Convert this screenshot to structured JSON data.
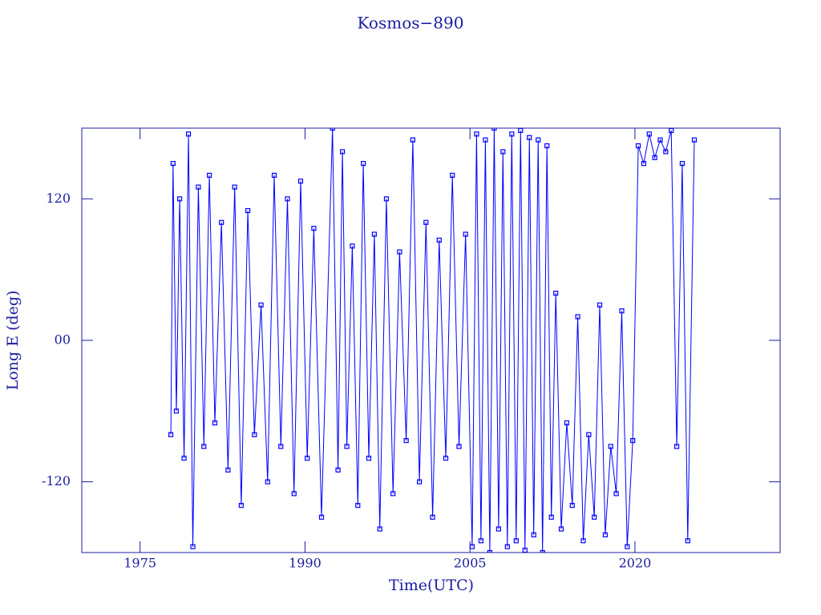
{
  "chart_data": {
    "type": "line",
    "title": "Kosmos−890",
    "x_label": "Time(UTC)",
    "y_label": "Long E (deg)",
    "color": "#0000ff",
    "axis_color": "#1c1ca0",
    "xlim": [
      1969.7,
      2033.2
    ],
    "xticks": [
      1975,
      1990,
      2005,
      2020
    ],
    "ylim": [
      -180,
      180
    ],
    "yticks": [
      120,
      {
        "value": 0,
        "label": "00"
      },
      -120
    ],
    "markers": true,
    "x": [
      1977.8,
      1978.0,
      1978.3,
      1978.6,
      1979.0,
      1979.4,
      1979.8,
      1980.3,
      1980.8,
      1981.3,
      1981.8,
      1982.4,
      1983.0,
      1983.6,
      1984.2,
      1984.8,
      1985.4,
      1986.0,
      1986.6,
      1987.2,
      1987.8,
      1988.4,
      1989.0,
      1989.6,
      1990.2,
      1990.8,
      1991.5,
      1992.5,
      1993.0,
      1993.4,
      1993.8,
      1994.3,
      1994.8,
      1995.3,
      1995.8,
      1996.3,
      1996.8,
      1997.4,
      1998.0,
      1998.6,
      1999.2,
      1999.8,
      2000.4,
      2001.0,
      2001.6,
      2002.2,
      2002.8,
      2003.4,
      2004.0,
      2004.6,
      2005.2,
      2005.6,
      2006.0,
      2006.4,
      2006.8,
      2007.2,
      2007.6,
      2008.0,
      2008.4,
      2008.8,
      2009.2,
      2009.6,
      2010.0,
      2010.4,
      2010.8,
      2011.2,
      2011.6,
      2012.0,
      2012.4,
      2012.8,
      2013.3,
      2013.8,
      2014.3,
      2014.8,
      2015.3,
      2015.8,
      2016.3,
      2016.8,
      2017.3,
      2017.8,
      2018.3,
      2018.8,
      2019.3,
      2019.8,
      2020.3,
      2020.8,
      2021.3,
      2021.8,
      2022.3,
      2022.8,
      2023.3,
      2023.8,
      2024.3,
      2024.8,
      2025.4
    ],
    "values": [
      -80,
      150,
      -60,
      120,
      -100,
      175,
      -175,
      130,
      -90,
      140,
      -70,
      100,
      -110,
      130,
      -140,
      110,
      -80,
      30,
      -120,
      140,
      -90,
      120,
      -130,
      135,
      -100,
      95,
      -150,
      180,
      -110,
      160,
      -90,
      80,
      -140,
      150,
      -100,
      90,
      -160,
      120,
      -130,
      75,
      -85,
      170,
      -120,
      100,
      -150,
      85,
      -100,
      140,
      -90,
      90,
      -175,
      175,
      -170,
      170,
      -180,
      180,
      -160,
      160,
      -175,
      175,
      -170,
      178,
      -178,
      172,
      -165,
      170,
      -180,
      165,
      -150,
      40,
      -160,
      -70,
      -140,
      20,
      -170,
      -80,
      -150,
      30,
      -165,
      -90,
      -130,
      25,
      -175,
      -85,
      165,
      150,
      175,
      155,
      170,
      160,
      178,
      -90,
      150,
      -170,
      170
    ]
  }
}
